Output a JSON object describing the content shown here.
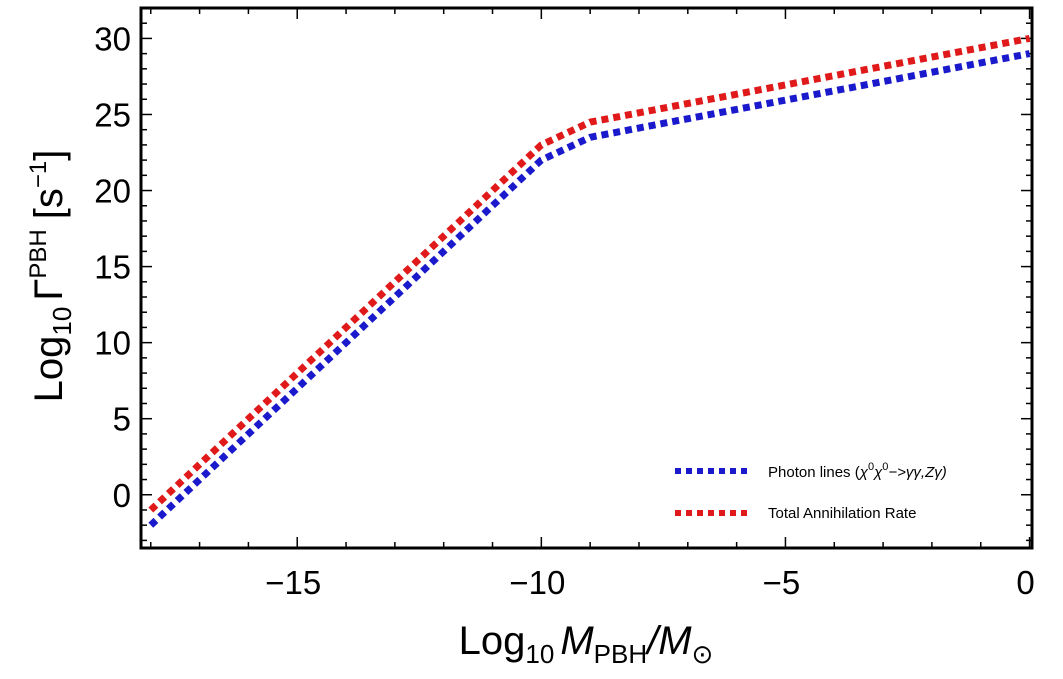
{
  "chart_data": {
    "type": "line",
    "title": "",
    "xlabel": {
      "prefix": "Log",
      "sub": "10",
      "var": "M",
      "var_sub": "PBH",
      "rest": "/M",
      "rest_sub": "⊙"
    },
    "ylabel": {
      "prefix": "Log",
      "sub": "10",
      "var": "Γ",
      "sup": "PBH",
      "unit_open": "[s",
      "unit_sup": "−1",
      "unit_close": "]"
    },
    "xlim": [
      -18.2,
      0.05
    ],
    "ylim": [
      -3.5,
      32
    ],
    "x_ticks": [
      -15,
      -10,
      -5,
      0
    ],
    "x_tick_labels": [
      "−15",
      "−10",
      "−5",
      "0"
    ],
    "y_ticks": [
      0,
      5,
      10,
      15,
      20,
      25,
      30
    ],
    "y_tick_labels": [
      "0",
      "5",
      "10",
      "15",
      "20",
      "25",
      "30"
    ],
    "legend_position": "bottom-right",
    "series": [
      {
        "name": "Photon lines (χ0χ0−>γγ,Zγ)",
        "legend": {
          "before": "Photon lines (",
          "chi": "χ",
          "sup1": "0",
          "chi2": "χ",
          "sup2": "0",
          "after": "−>γγ,Zγ)"
        },
        "color": "#1a1acc",
        "style": "dotted",
        "x": [
          -18,
          -10,
          -9,
          0
        ],
        "y": [
          -2,
          22,
          23.5,
          29
        ]
      },
      {
        "name": "Total Annihilation Rate",
        "legend": {
          "before": "Total Annihilation Rate"
        },
        "color": "#e01a1a",
        "style": "dotted",
        "x": [
          -18,
          -10,
          -9,
          0
        ],
        "y": [
          -1,
          23,
          24.5,
          30
        ]
      }
    ]
  }
}
